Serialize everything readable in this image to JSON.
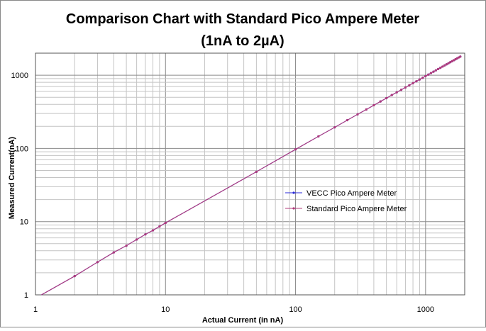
{
  "chart_data": {
    "type": "line",
    "title": "Comparison Chart with Standard Pico Ampere Meter",
    "subtitle": "(1nA to 2µA)",
    "xlabel": "Actual Current (in nA)",
    "ylabel": "Measured Current(nA)",
    "xscale": "log",
    "yscale": "log",
    "xlim": [
      1,
      2000
    ],
    "ylim": [
      1,
      2000
    ],
    "x_ticks": [
      {
        "value": 1,
        "label": "1"
      },
      {
        "value": 10,
        "label": "10"
      },
      {
        "value": 100,
        "label": "100"
      },
      {
        "value": 1000,
        "label": "1000"
      }
    ],
    "y_ticks": [
      {
        "value": 1,
        "label": "1"
      },
      {
        "value": 10,
        "label": "10"
      },
      {
        "value": 100,
        "label": "100"
      },
      {
        "value": 1000,
        "label": "1000"
      }
    ],
    "grid": true,
    "legend_position": "right-middle",
    "series": [
      {
        "name": "VECC Pico Ampere Meter",
        "color": "#2a2ad8",
        "marker": true,
        "x": [
          1,
          2,
          3,
          4,
          5,
          6,
          7,
          8,
          9,
          10,
          50,
          100,
          150,
          200,
          250,
          300,
          350,
          400,
          450,
          500,
          550,
          600,
          650,
          700,
          750,
          800,
          850,
          900,
          950,
          1000,
          1050,
          1100,
          1150,
          1200,
          1250,
          1300,
          1350,
          1400,
          1450,
          1500,
          1550,
          1600,
          1650,
          1700,
          1750,
          1800,
          1850
        ],
        "y": [
          0.9,
          1.8,
          2.8,
          3.8,
          4.7,
          5.7,
          6.7,
          7.6,
          8.6,
          9.6,
          48,
          97,
          146,
          194,
          243,
          292,
          340,
          389,
          438,
          486,
          535,
          584,
          632,
          681,
          729,
          778,
          826,
          875,
          923,
          972,
          1020,
          1069,
          1117,
          1166,
          1214,
          1263,
          1311,
          1360,
          1408,
          1457,
          1505,
          1554,
          1602,
          1651,
          1699,
          1748,
          1796
        ]
      },
      {
        "name": "Standard Pico Ampere Meter",
        "color": "#b03b7a",
        "marker": true,
        "x": [
          1,
          2,
          3,
          4,
          5,
          6,
          7,
          8,
          9,
          10,
          50,
          100,
          150,
          200,
          250,
          300,
          350,
          400,
          450,
          500,
          550,
          600,
          650,
          700,
          750,
          800,
          850,
          900,
          950,
          1000,
          1050,
          1100,
          1150,
          1200,
          1250,
          1300,
          1350,
          1400,
          1450,
          1500,
          1550,
          1600,
          1650,
          1700,
          1750,
          1800,
          1850
        ],
        "y": [
          0.9,
          1.8,
          2.8,
          3.8,
          4.7,
          5.7,
          6.7,
          7.6,
          8.6,
          9.6,
          48,
          97,
          146,
          194,
          243,
          292,
          340,
          389,
          438,
          486,
          535,
          584,
          632,
          681,
          729,
          778,
          826,
          875,
          923,
          972,
          1020,
          1069,
          1117,
          1166,
          1214,
          1263,
          1311,
          1360,
          1408,
          1457,
          1505,
          1554,
          1602,
          1651,
          1699,
          1748,
          1796
        ]
      }
    ]
  }
}
